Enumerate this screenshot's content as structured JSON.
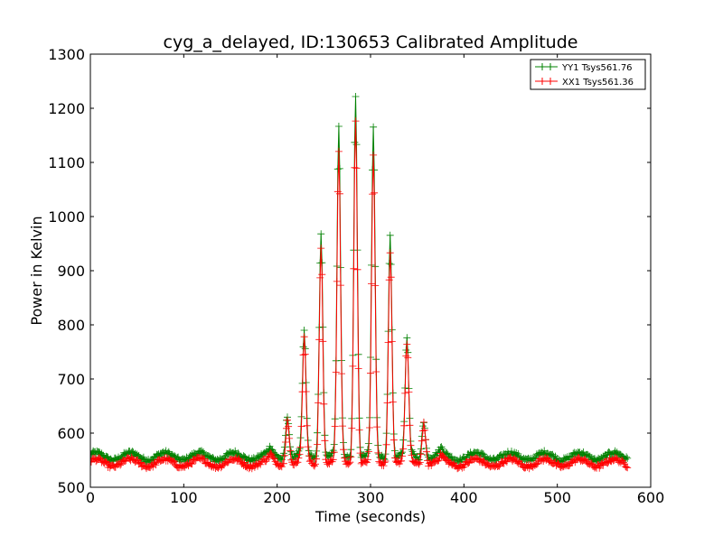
{
  "chart_data": {
    "type": "line",
    "title": "cyg_a_delayed, ID:130653 Calibrated Amplitude",
    "xlabel": "Time (seconds)",
    "ylabel": "Power in Kelvin",
    "xlim": [
      0,
      600
    ],
    "ylim": [
      500,
      1300
    ],
    "xticks": [
      0,
      100,
      200,
      300,
      400,
      500,
      600
    ],
    "yticks": [
      500,
      600,
      700,
      800,
      900,
      1000,
      1100,
      1200,
      1300
    ],
    "xtick_labels": [
      "0",
      "100",
      "200",
      "300",
      "400",
      "500",
      "600"
    ],
    "ytick_labels": [
      "500",
      "600",
      "700",
      "800",
      "900",
      "1000",
      "1100",
      "1200",
      "1300"
    ],
    "grid": false,
    "legend_position": "top-right",
    "x_range": [
      0,
      575
    ],
    "sample_interval": 1,
    "marker": "plus",
    "series": [
      {
        "name": "YY1 Tsys561.76",
        "color": "#008000",
        "baseline": 557,
        "ripple": 7,
        "ripple_period": 37,
        "noise": 4,
        "peaks": [
          {
            "x": 193,
            "y": 568
          },
          {
            "x": 211,
            "y": 638
          },
          {
            "x": 229,
            "y": 780
          },
          {
            "x": 247,
            "y": 978
          },
          {
            "x": 266,
            "y": 1160
          },
          {
            "x": 284,
            "y": 1230
          },
          {
            "x": 303,
            "y": 1157
          },
          {
            "x": 321,
            "y": 970
          },
          {
            "x": 339,
            "y": 770
          },
          {
            "x": 357,
            "y": 628
          },
          {
            "x": 376,
            "y": 566
          }
        ]
      },
      {
        "name": "XX1 Tsys561.36",
        "color": "#ff0000",
        "baseline": 545,
        "ripple": 7,
        "ripple_period": 37,
        "noise": 4,
        "peaks": [
          {
            "x": 193,
            "y": 555
          },
          {
            "x": 211,
            "y": 630
          },
          {
            "x": 229,
            "y": 768
          },
          {
            "x": 247,
            "y": 948
          },
          {
            "x": 266,
            "y": 1110
          },
          {
            "x": 284,
            "y": 1180
          },
          {
            "x": 303,
            "y": 1108
          },
          {
            "x": 321,
            "y": 942
          },
          {
            "x": 339,
            "y": 760
          },
          {
            "x": 357,
            "y": 625
          },
          {
            "x": 376,
            "y": 553
          }
        ]
      }
    ]
  }
}
